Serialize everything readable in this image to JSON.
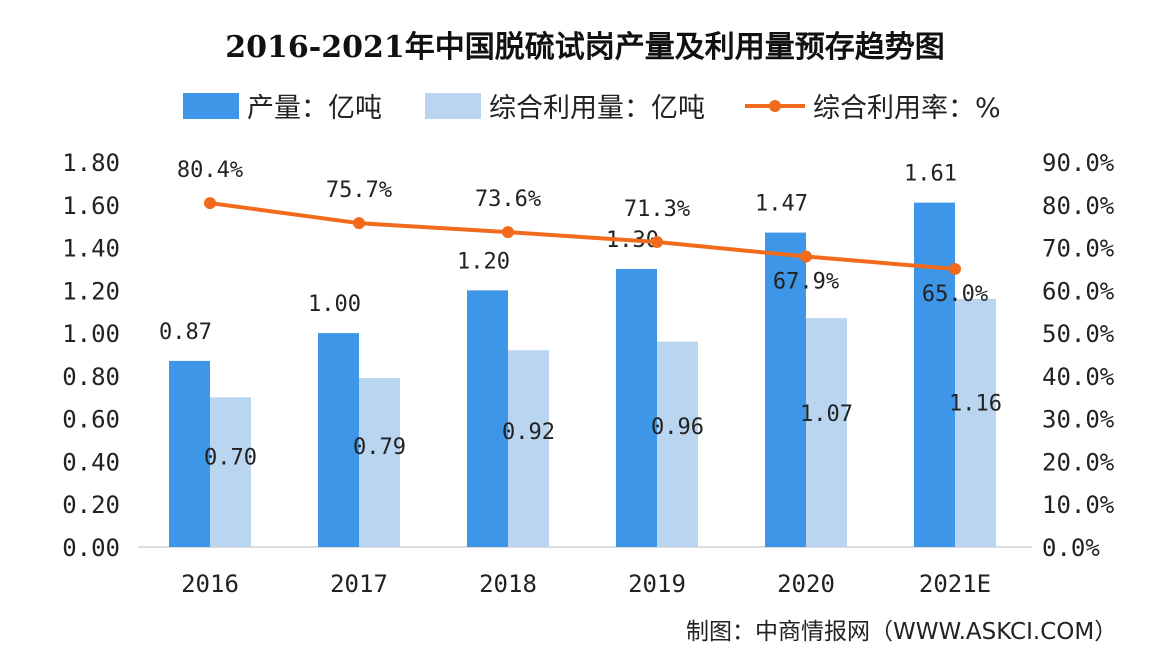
{
  "chart_data": {
    "type": "bar+line",
    "title": "2016-2021年中国脱硫试岗产量及利用量预存趋势图",
    "categories": [
      "2016",
      "2017",
      "2018",
      "2019",
      "2020",
      "2021E"
    ],
    "series": [
      {
        "name": "产量：亿吨",
        "type": "bar",
        "axis": "left",
        "color": "#3d96e8",
        "values": [
          0.87,
          1.0,
          1.2,
          1.3,
          1.47,
          1.61
        ],
        "labels": [
          "0.87",
          "1.00",
          "1.20",
          "1.30",
          "1.47",
          "1.61"
        ]
      },
      {
        "name": "综合利用量：亿吨",
        "type": "bar",
        "axis": "left",
        "color": "#b9d5f0",
        "values": [
          0.7,
          0.79,
          0.92,
          0.96,
          1.07,
          1.16
        ],
        "labels": [
          "0.70",
          "0.79",
          "0.92",
          "0.96",
          "1.07",
          "1.16"
        ]
      },
      {
        "name": "综合利用率：%",
        "type": "line",
        "axis": "right",
        "color": "#f26b1d",
        "values": [
          80.4,
          75.7,
          73.6,
          71.3,
          67.9,
          65.0
        ],
        "labels": [
          "80.4%",
          "75.7%",
          "73.6%",
          "71.3%",
          "67.9%",
          "65.0%"
        ]
      }
    ],
    "y_left": {
      "lim": [
        0,
        1.8
      ],
      "ticks": [
        "0.00",
        "0.20",
        "0.40",
        "0.60",
        "0.80",
        "1.00",
        "1.20",
        "1.40",
        "1.60",
        "1.80"
      ]
    },
    "y_right": {
      "lim": [
        0,
        90
      ],
      "ticks": [
        "0.0%",
        "10.0%",
        "20.0%",
        "30.0%",
        "40.0%",
        "50.0%",
        "60.0%",
        "70.0%",
        "80.0%",
        "90.0%"
      ]
    },
    "grid": false,
    "legend": "top"
  },
  "source": "制图：中商情报网（WWW.ASKCI.COM）"
}
